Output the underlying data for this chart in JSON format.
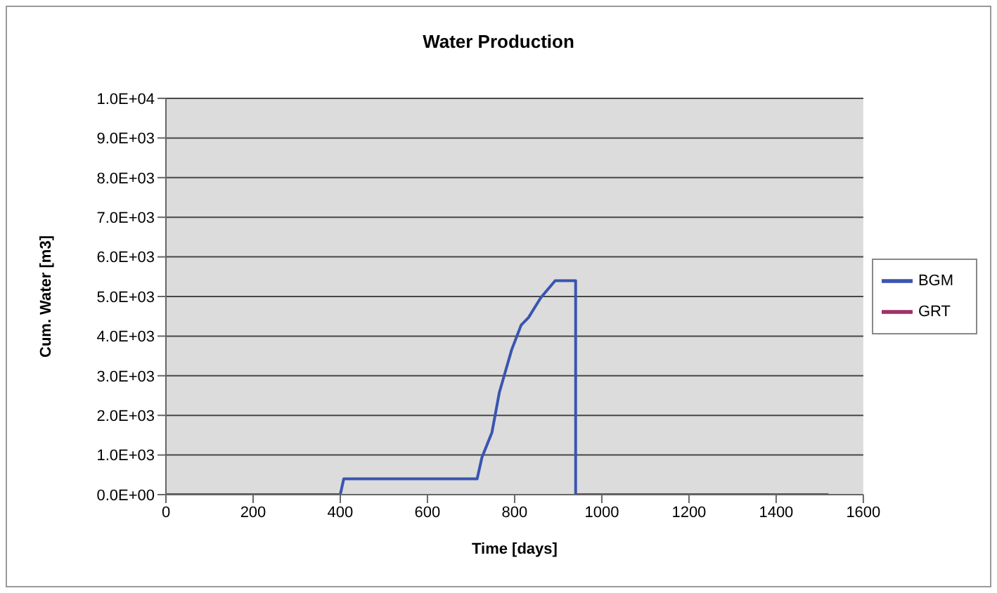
{
  "chart_data": {
    "type": "line",
    "title": "Water Production",
    "xlabel": "Time [days]",
    "ylabel": "Cum. Water [m3]",
    "xlim": [
      0,
      1600
    ],
    "xticks": [
      0,
      200,
      400,
      600,
      800,
      1000,
      1200,
      1400,
      1600
    ],
    "ylim": [
      0,
      10000
    ],
    "yticks": [
      {
        "value": 0,
        "label": "0.0E+00"
      },
      {
        "value": 1000,
        "label": "1.0E+03"
      },
      {
        "value": 2000,
        "label": "2.0E+03"
      },
      {
        "value": 3000,
        "label": "3.0E+03"
      },
      {
        "value": 4000,
        "label": "4.0E+03"
      },
      {
        "value": 5000,
        "label": "5.0E+03"
      },
      {
        "value": 6000,
        "label": "6.0E+03"
      },
      {
        "value": 7000,
        "label": "7.0E+03"
      },
      {
        "value": 8000,
        "label": "8.0E+03"
      },
      {
        "value": 9000,
        "label": "9.0E+03"
      },
      {
        "value": 10000,
        "label": "1.0E+04"
      }
    ],
    "grid": "y",
    "legend": "right",
    "marker": "none",
    "line_style": "solid",
    "series": [
      {
        "name": "BGM",
        "color": "#3a55b0",
        "x": [
          0,
          400,
          408,
          714,
          725,
          748,
          765,
          776,
          793,
          815,
          832,
          860,
          893,
          940,
          940
        ],
        "values": [
          0,
          0,
          400,
          400,
          940,
          1570,
          2580,
          3000,
          3650,
          4280,
          4470,
          4970,
          5400,
          5400,
          0
        ]
      },
      {
        "name": "GRT",
        "color": "#a0306a",
        "x": [
          940,
          1520
        ],
        "values": [
          0,
          0
        ]
      }
    ]
  }
}
